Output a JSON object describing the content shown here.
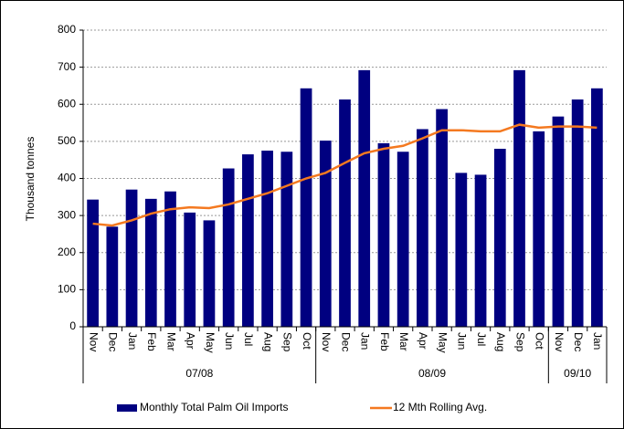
{
  "chart_data": {
    "type": "bar",
    "y_label": "Thousand tonnes",
    "groups": [
      {
        "label": "07/08",
        "categories": [
          "Nov",
          "Dec",
          "Jan",
          "Feb",
          "Mar",
          "Apr",
          "May",
          "Jun",
          "Jul",
          "Aug",
          "Sep",
          "Oct"
        ]
      },
      {
        "label": "08/09",
        "categories": [
          "Nov",
          "Dec",
          "Jan",
          "Feb",
          "Mar",
          "Apr",
          "May",
          "Jun",
          "Jul",
          "Aug",
          "Sep",
          "Oct"
        ]
      },
      {
        "label": "09/10",
        "categories": [
          "Nov",
          "Dec",
          "Jan"
        ]
      }
    ],
    "series": [
      {
        "name": "Monthly Total Palm Oil Imports",
        "type": "bar",
        "color": "#000080",
        "values": [
          343,
          270,
          370,
          345,
          365,
          308,
          287,
          427,
          465,
          475,
          472,
          643,
          502,
          613,
          692,
          495,
          472,
          533,
          587,
          415,
          410,
          480,
          692,
          527,
          567,
          613,
          643
        ]
      },
      {
        "name": "12 Mth Rolling Avg.",
        "type": "line",
        "color": "#f47920",
        "values": [
          278,
          273,
          287,
          305,
          317,
          322,
          320,
          330,
          345,
          360,
          380,
          400,
          415,
          442,
          468,
          480,
          488,
          508,
          530,
          530,
          527,
          527,
          545,
          537,
          540,
          540,
          537
        ]
      }
    ],
    "ylim": [
      0,
      800
    ],
    "yticks": [
      0,
      100,
      200,
      300,
      400,
      500,
      600,
      700,
      800
    ],
    "grid": true,
    "legend": "bottom"
  }
}
